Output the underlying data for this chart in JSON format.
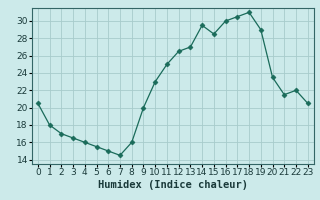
{
  "x": [
    0,
    1,
    2,
    3,
    4,
    5,
    6,
    7,
    8,
    9,
    10,
    11,
    12,
    13,
    14,
    15,
    16,
    17,
    18,
    19,
    20,
    21,
    22,
    23
  ],
  "y": [
    20.5,
    18.0,
    17.0,
    16.5,
    16.0,
    15.5,
    15.0,
    14.5,
    16.0,
    20.0,
    23.0,
    25.0,
    26.5,
    27.0,
    29.5,
    28.5,
    30.0,
    30.5,
    31.0,
    29.0,
    23.5,
    21.5,
    22.0,
    20.5
  ],
  "line_color": "#1a6b5a",
  "marker": "D",
  "marker_size": 2.5,
  "bg_color": "#cceaea",
  "grid_color": "#a8cccc",
  "xlabel": "Humidex (Indice chaleur)",
  "ylim": [
    13.5,
    31.5
  ],
  "xlim": [
    -0.5,
    23.5
  ],
  "yticks": [
    14,
    16,
    18,
    20,
    22,
    24,
    26,
    28,
    30
  ],
  "xticks": [
    0,
    1,
    2,
    3,
    4,
    5,
    6,
    7,
    8,
    9,
    10,
    11,
    12,
    13,
    14,
    15,
    16,
    17,
    18,
    19,
    20,
    21,
    22,
    23
  ],
  "tick_fontsize": 6.5,
  "label_fontsize": 7.5
}
